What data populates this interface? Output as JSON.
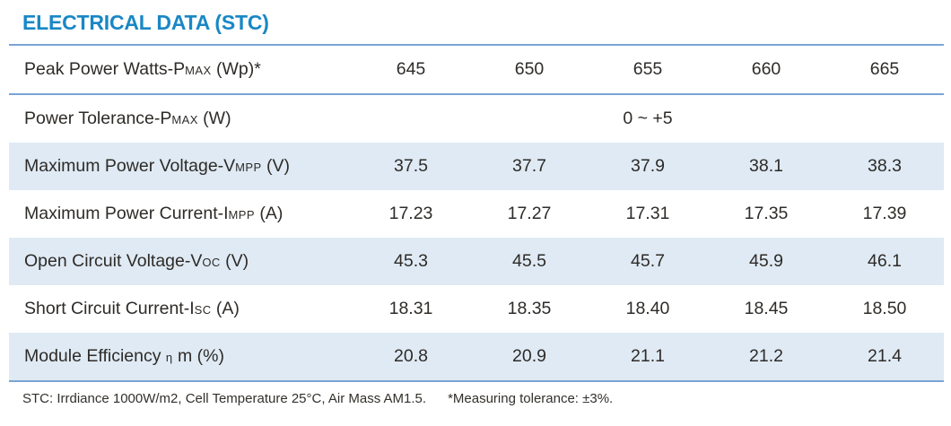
{
  "title": "ELECTRICAL DATA (STC)",
  "colors": {
    "title_blue": "#1987c5",
    "line_blue": "#79a5d4",
    "band_blue": "#dfeaf4",
    "text_dark": "#2e2b28",
    "footer_text": "#33302c"
  },
  "table": {
    "rows": [
      {
        "label": {
          "pre": "Peak Power Watts-P",
          "sub": "MAX",
          "post": " (Wp)*"
        },
        "values": [
          "645",
          "650",
          "655",
          "660",
          "665"
        ]
      },
      {
        "label": {
          "pre": "Power Tolerance-P",
          "sub": "MAX",
          "post": " (W)"
        },
        "span_value": "0 ~ +5"
      },
      {
        "label": {
          "pre": "Maximum Power Voltage-V",
          "sub": "MPP",
          "post": " (V)"
        },
        "values": [
          "37.5",
          "37.7",
          "37.9",
          "38.1",
          "38.3"
        ]
      },
      {
        "label": {
          "pre": "Maximum Power Current-I",
          "sub": "MPP",
          "post": " (A)"
        },
        "values": [
          "17.23",
          "17.27",
          "17.31",
          "17.35",
          "17.39"
        ]
      },
      {
        "label": {
          "pre": "Open Circuit Voltage-V",
          "sub": "OC",
          "post": " (V)"
        },
        "values": [
          "45.3",
          "45.5",
          "45.7",
          "45.9",
          "46.1"
        ]
      },
      {
        "label": {
          "pre": "Short Circuit Current-I",
          "sub": "SC",
          "post": " (A)"
        },
        "values": [
          "18.31",
          "18.35",
          "18.40",
          "18.45",
          "18.50"
        ]
      },
      {
        "label": {
          "pre": "Module Efficiency ",
          "sub": "η",
          "post": " m (%)"
        },
        "values": [
          "20.8",
          "20.9",
          "21.1",
          "21.2",
          "21.4"
        ]
      }
    ]
  },
  "footer": {
    "left": "STC: Irrdiance 1000W/m2, Cell Temperature 25°C, Air Mass AM1.5.",
    "right": "*Measuring tolerance: ±3%."
  }
}
